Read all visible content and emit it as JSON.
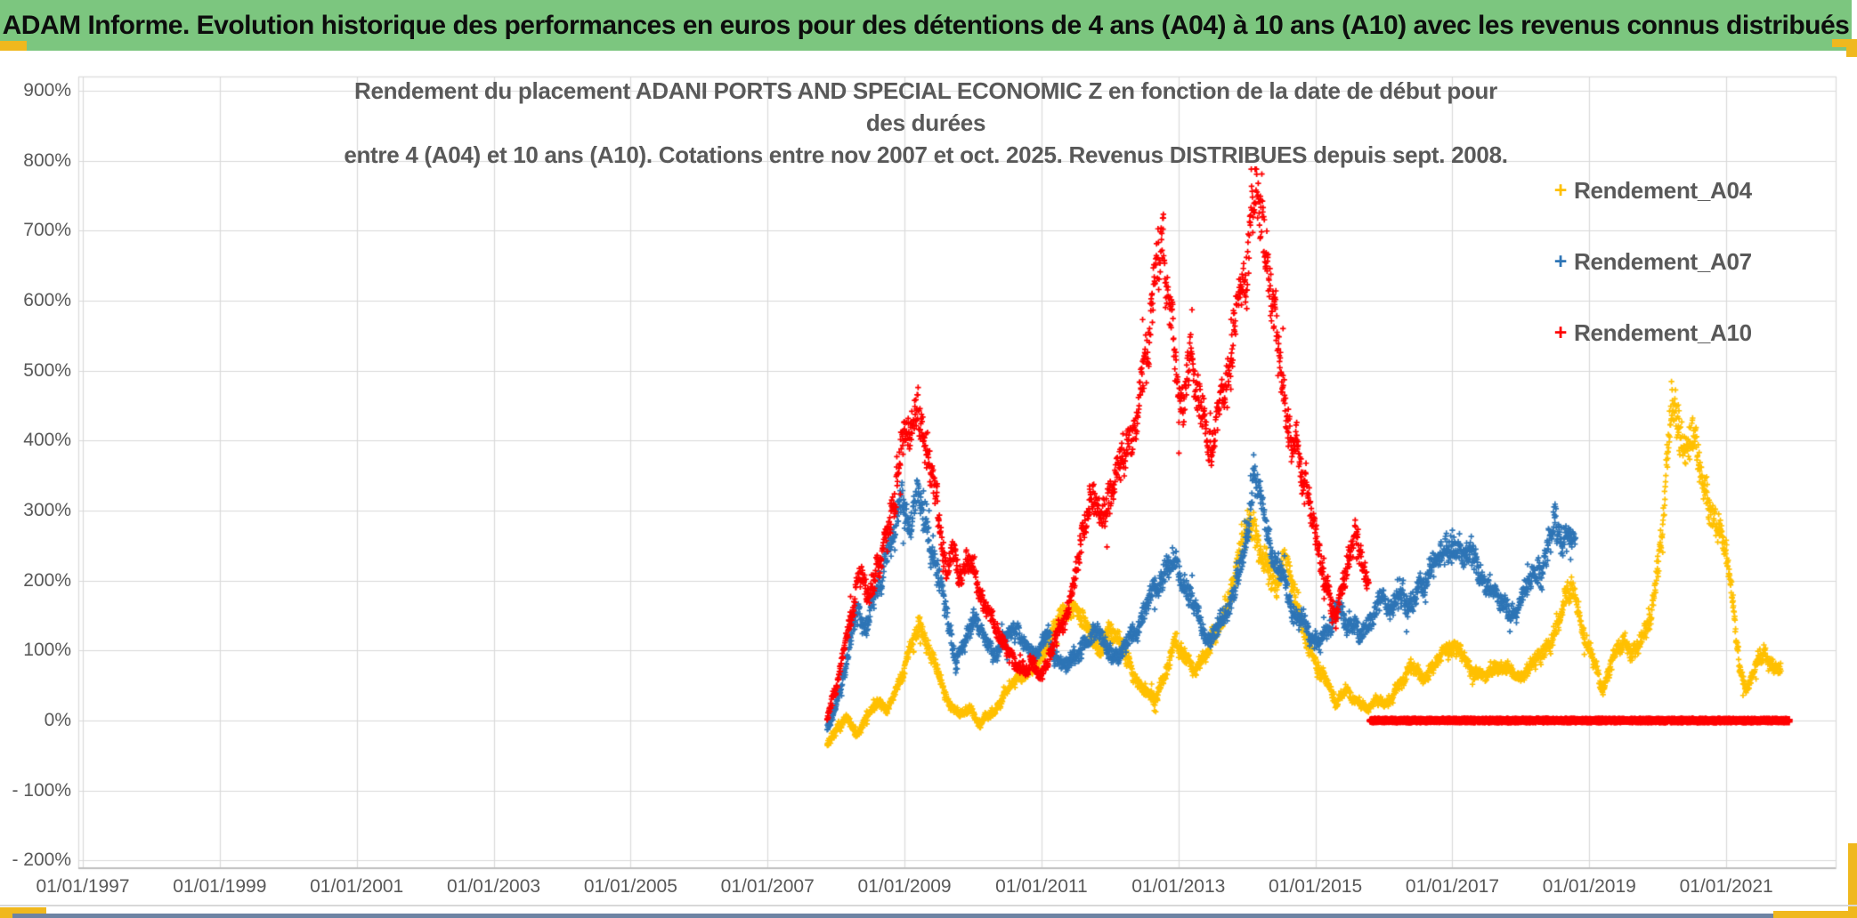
{
  "header": {
    "title": "ADAM Informe. Evolution historique des performances en euros pour des détentions de 4 ans (A04) à 10 ans (A10) avec les revenus connus distribués"
  },
  "colors": {
    "banner_green": "#7cc67f",
    "accent_gold": "#f0b81e",
    "bottom_strip_blue": "#6d83a3",
    "gridline": "#d9d9d9",
    "axis_line": "#bfbfbf",
    "axis_text": "#595959"
  },
  "chart_data": {
    "type": "scatter",
    "marker": "plus",
    "grid": true,
    "legend_position": "right-top",
    "title_line1": "Rendement du placement ADANI PORTS AND SPECIAL ECONOMIC Z en fonction de la date de début pour des durées",
    "title_line2": "entre 4 (A04) et 10 ans (A10). Cotations entre nov 2007 et oct. 2025. Revenus DISTRIBUES depuis sept. 2008.",
    "xlabel": "",
    "ylabel": "",
    "x_axis": {
      "tick_labels": [
        "01/01/1997",
        "01/01/1999",
        "01/01/2001",
        "01/01/2003",
        "01/01/2005",
        "01/01/2007",
        "01/01/2009",
        "01/01/2011",
        "01/01/2013",
        "01/01/2015",
        "01/01/2017",
        "01/01/2019",
        "01/01/2021"
      ],
      "tick_years": [
        1997,
        1999,
        2001,
        2003,
        2005,
        2007,
        2009,
        2011,
        2013,
        2015,
        2017,
        2019,
        2021
      ]
    },
    "y_axis": {
      "tick_labels": [
        "900%",
        "800%",
        "700%",
        "600%",
        "500%",
        "400%",
        "300%",
        "200%",
        "100%",
        "0%",
        "- 100%",
        "- 200%"
      ],
      "tick_values": [
        900,
        800,
        700,
        600,
        500,
        400,
        300,
        200,
        100,
        0,
        -100,
        -200
      ],
      "range": [
        -200,
        900
      ],
      "unit": "%"
    },
    "series": [
      {
        "name": "Rendement_A04",
        "color": "#ffc000",
        "seed": 11,
        "anchors": [
          [
            2007.87,
            -35
          ],
          [
            2008.0,
            -15
          ],
          [
            2008.15,
            8
          ],
          [
            2008.3,
            -18
          ],
          [
            2008.45,
            12
          ],
          [
            2008.6,
            25
          ],
          [
            2008.75,
            18
          ],
          [
            2008.9,
            45
          ],
          [
            2009.05,
            90
          ],
          [
            2009.2,
            130
          ],
          [
            2009.35,
            105
          ],
          [
            2009.5,
            60
          ],
          [
            2009.65,
            25
          ],
          [
            2009.8,
            8
          ],
          [
            2009.95,
            18
          ],
          [
            2010.1,
            -5
          ],
          [
            2010.25,
            8
          ],
          [
            2010.45,
            35
          ],
          [
            2010.6,
            55
          ],
          [
            2010.8,
            70
          ],
          [
            2011.0,
            95
          ],
          [
            2011.2,
            135
          ],
          [
            2011.4,
            160
          ],
          [
            2011.55,
            150
          ],
          [
            2011.7,
            120
          ],
          [
            2011.85,
            105
          ],
          [
            2012.0,
            130
          ],
          [
            2012.15,
            105
          ],
          [
            2012.3,
            75
          ],
          [
            2012.5,
            40
          ],
          [
            2012.65,
            30
          ],
          [
            2012.8,
            65
          ],
          [
            2012.95,
            110
          ],
          [
            2013.1,
            85
          ],
          [
            2013.25,
            70
          ],
          [
            2013.4,
            95
          ],
          [
            2013.55,
            130
          ],
          [
            2013.7,
            165
          ],
          [
            2013.85,
            215
          ],
          [
            2014.0,
            265
          ],
          [
            2014.1,
            295
          ],
          [
            2014.2,
            260
          ],
          [
            2014.3,
            225
          ],
          [
            2014.45,
            195
          ],
          [
            2014.55,
            235
          ],
          [
            2014.7,
            185
          ],
          [
            2014.85,
            125
          ],
          [
            2015.0,
            90
          ],
          [
            2015.15,
            55
          ],
          [
            2015.3,
            28
          ],
          [
            2015.45,
            45
          ],
          [
            2015.6,
            28
          ],
          [
            2015.75,
            15
          ],
          [
            2015.9,
            32
          ],
          [
            2016.05,
            22
          ],
          [
            2016.2,
            48
          ],
          [
            2016.4,
            72
          ],
          [
            2016.6,
            58
          ],
          [
            2016.8,
            88
          ],
          [
            2017.0,
            105
          ],
          [
            2017.15,
            92
          ],
          [
            2017.3,
            72
          ],
          [
            2017.5,
            62
          ],
          [
            2017.65,
            78
          ],
          [
            2017.8,
            72
          ],
          [
            2017.95,
            58
          ],
          [
            2018.1,
            72
          ],
          [
            2018.3,
            92
          ],
          [
            2018.5,
            132
          ],
          [
            2018.65,
            178
          ],
          [
            2018.78,
            190
          ],
          [
            2018.9,
            135
          ],
          [
            2019.05,
            85
          ],
          [
            2019.2,
            45
          ],
          [
            2019.35,
            95
          ],
          [
            2019.5,
            120
          ],
          [
            2019.6,
            92
          ],
          [
            2019.75,
            108
          ],
          [
            2019.9,
            148
          ],
          [
            2020.0,
            210
          ],
          [
            2020.1,
            320
          ],
          [
            2020.2,
            465
          ],
          [
            2020.3,
            420
          ],
          [
            2020.38,
            375
          ],
          [
            2020.5,
            400
          ],
          [
            2020.6,
            355
          ],
          [
            2020.75,
            320
          ],
          [
            2020.9,
            285
          ],
          [
            2021.0,
            245
          ],
          [
            2021.1,
            175
          ],
          [
            2021.2,
            70
          ],
          [
            2021.3,
            42
          ],
          [
            2021.45,
            78
          ],
          [
            2021.55,
            98
          ],
          [
            2021.65,
            80
          ],
          [
            2021.8,
            68
          ]
        ]
      },
      {
        "name": "Rendement_A07",
        "color": "#2e75b6",
        "seed": 22,
        "anchors": [
          [
            2007.87,
            -10
          ],
          [
            2008.0,
            25
          ],
          [
            2008.1,
            65
          ],
          [
            2008.2,
            115
          ],
          [
            2008.33,
            170
          ],
          [
            2008.45,
            140
          ],
          [
            2008.6,
            185
          ],
          [
            2008.75,
            235
          ],
          [
            2008.9,
            285
          ],
          [
            2009.0,
            310
          ],
          [
            2009.1,
            285
          ],
          [
            2009.2,
            330
          ],
          [
            2009.3,
            275
          ],
          [
            2009.45,
            225
          ],
          [
            2009.6,
            155
          ],
          [
            2009.75,
            80
          ],
          [
            2009.9,
            115
          ],
          [
            2010.0,
            150
          ],
          [
            2010.15,
            125
          ],
          [
            2010.3,
            95
          ],
          [
            2010.45,
            112
          ],
          [
            2010.6,
            132
          ],
          [
            2010.75,
            108
          ],
          [
            2010.9,
            88
          ],
          [
            2011.05,
            118
          ],
          [
            2011.2,
            98
          ],
          [
            2011.35,
            85
          ],
          [
            2011.5,
            95
          ],
          [
            2011.65,
            112
          ],
          [
            2011.8,
            128
          ],
          [
            2011.95,
            108
          ],
          [
            2012.1,
            88
          ],
          [
            2012.25,
            108
          ],
          [
            2012.4,
            135
          ],
          [
            2012.55,
            165
          ],
          [
            2012.7,
            195
          ],
          [
            2012.85,
            225
          ],
          [
            2013.0,
            215
          ],
          [
            2013.15,
            178
          ],
          [
            2013.3,
            148
          ],
          [
            2013.45,
            118
          ],
          [
            2013.6,
            138
          ],
          [
            2013.75,
            168
          ],
          [
            2013.9,
            215
          ],
          [
            2014.0,
            275
          ],
          [
            2014.1,
            355
          ],
          [
            2014.2,
            305
          ],
          [
            2014.32,
            255
          ],
          [
            2014.45,
            215
          ],
          [
            2014.6,
            178
          ],
          [
            2014.75,
            148
          ],
          [
            2014.9,
            128
          ],
          [
            2015.05,
            108
          ],
          [
            2015.2,
            138
          ],
          [
            2015.35,
            168
          ],
          [
            2015.5,
            148
          ],
          [
            2015.65,
            128
          ],
          [
            2015.8,
            152
          ],
          [
            2015.95,
            175
          ],
          [
            2016.1,
            158
          ],
          [
            2016.25,
            182
          ],
          [
            2016.4,
            162
          ],
          [
            2016.55,
            188
          ],
          [
            2016.7,
            212
          ],
          [
            2016.85,
            238
          ],
          [
            2017.0,
            252
          ],
          [
            2017.15,
            228
          ],
          [
            2017.3,
            248
          ],
          [
            2017.45,
            208
          ],
          [
            2017.6,
            188
          ],
          [
            2017.75,
            168
          ],
          [
            2017.9,
            148
          ],
          [
            2018.05,
            178
          ],
          [
            2018.2,
            205
          ],
          [
            2018.35,
            228
          ],
          [
            2018.5,
            285
          ],
          [
            2018.6,
            248
          ],
          [
            2018.7,
            265
          ],
          [
            2018.8,
            235
          ]
        ]
      },
      {
        "name": "Rendement_A10",
        "color": "#ff0000",
        "seed": 33,
        "anchors": [
          [
            2007.87,
            0
          ],
          [
            2008.0,
            45
          ],
          [
            2008.1,
            95
          ],
          [
            2008.22,
            150
          ],
          [
            2008.35,
            200
          ],
          [
            2008.45,
            170
          ],
          [
            2008.6,
            215
          ],
          [
            2008.75,
            265
          ],
          [
            2008.87,
            330
          ],
          [
            2009.0,
            430
          ],
          [
            2009.08,
            390
          ],
          [
            2009.18,
            455
          ],
          [
            2009.3,
            415
          ],
          [
            2009.4,
            345
          ],
          [
            2009.5,
            285
          ],
          [
            2009.6,
            220
          ],
          [
            2009.7,
            258
          ],
          [
            2009.8,
            205
          ],
          [
            2009.95,
            228
          ],
          [
            2010.1,
            188
          ],
          [
            2010.25,
            142
          ],
          [
            2010.4,
            112
          ],
          [
            2010.55,
            92
          ],
          [
            2010.7,
            75
          ],
          [
            2010.85,
            88
          ],
          [
            2011.0,
            62
          ],
          [
            2011.15,
            92
          ],
          [
            2011.3,
            142
          ],
          [
            2011.45,
            175
          ],
          [
            2011.6,
            278
          ],
          [
            2011.75,
            308
          ],
          [
            2011.88,
            288
          ],
          [
            2012.0,
            318
          ],
          [
            2012.15,
            365
          ],
          [
            2012.3,
            415
          ],
          [
            2012.45,
            465
          ],
          [
            2012.57,
            515
          ],
          [
            2012.68,
            685
          ],
          [
            2012.78,
            635
          ],
          [
            2012.88,
            555
          ],
          [
            2012.98,
            488
          ],
          [
            2013.08,
            452
          ],
          [
            2013.18,
            498
          ],
          [
            2013.28,
            478
          ],
          [
            2013.38,
            432
          ],
          [
            2013.48,
            385
          ],
          [
            2013.58,
            422
          ],
          [
            2013.68,
            468
          ],
          [
            2013.78,
            528
          ],
          [
            2013.88,
            598
          ],
          [
            2013.98,
            622
          ],
          [
            2014.05,
            698
          ],
          [
            2014.12,
            772
          ],
          [
            2014.2,
            728
          ],
          [
            2014.3,
            648
          ],
          [
            2014.4,
            558
          ],
          [
            2014.5,
            478
          ],
          [
            2014.6,
            422
          ],
          [
            2014.7,
            388
          ],
          [
            2014.8,
            352
          ],
          [
            2014.9,
            328
          ],
          [
            2015.0,
            278
          ],
          [
            2015.1,
            222
          ],
          [
            2015.2,
            182
          ],
          [
            2015.3,
            152
          ],
          [
            2015.4,
            198
          ],
          [
            2015.5,
            232
          ],
          [
            2015.6,
            258
          ],
          [
            2015.68,
            212
          ],
          [
            2015.78,
            172
          ]
        ],
        "zero_segment": [
          2015.8,
          2021.92
        ]
      }
    ]
  }
}
